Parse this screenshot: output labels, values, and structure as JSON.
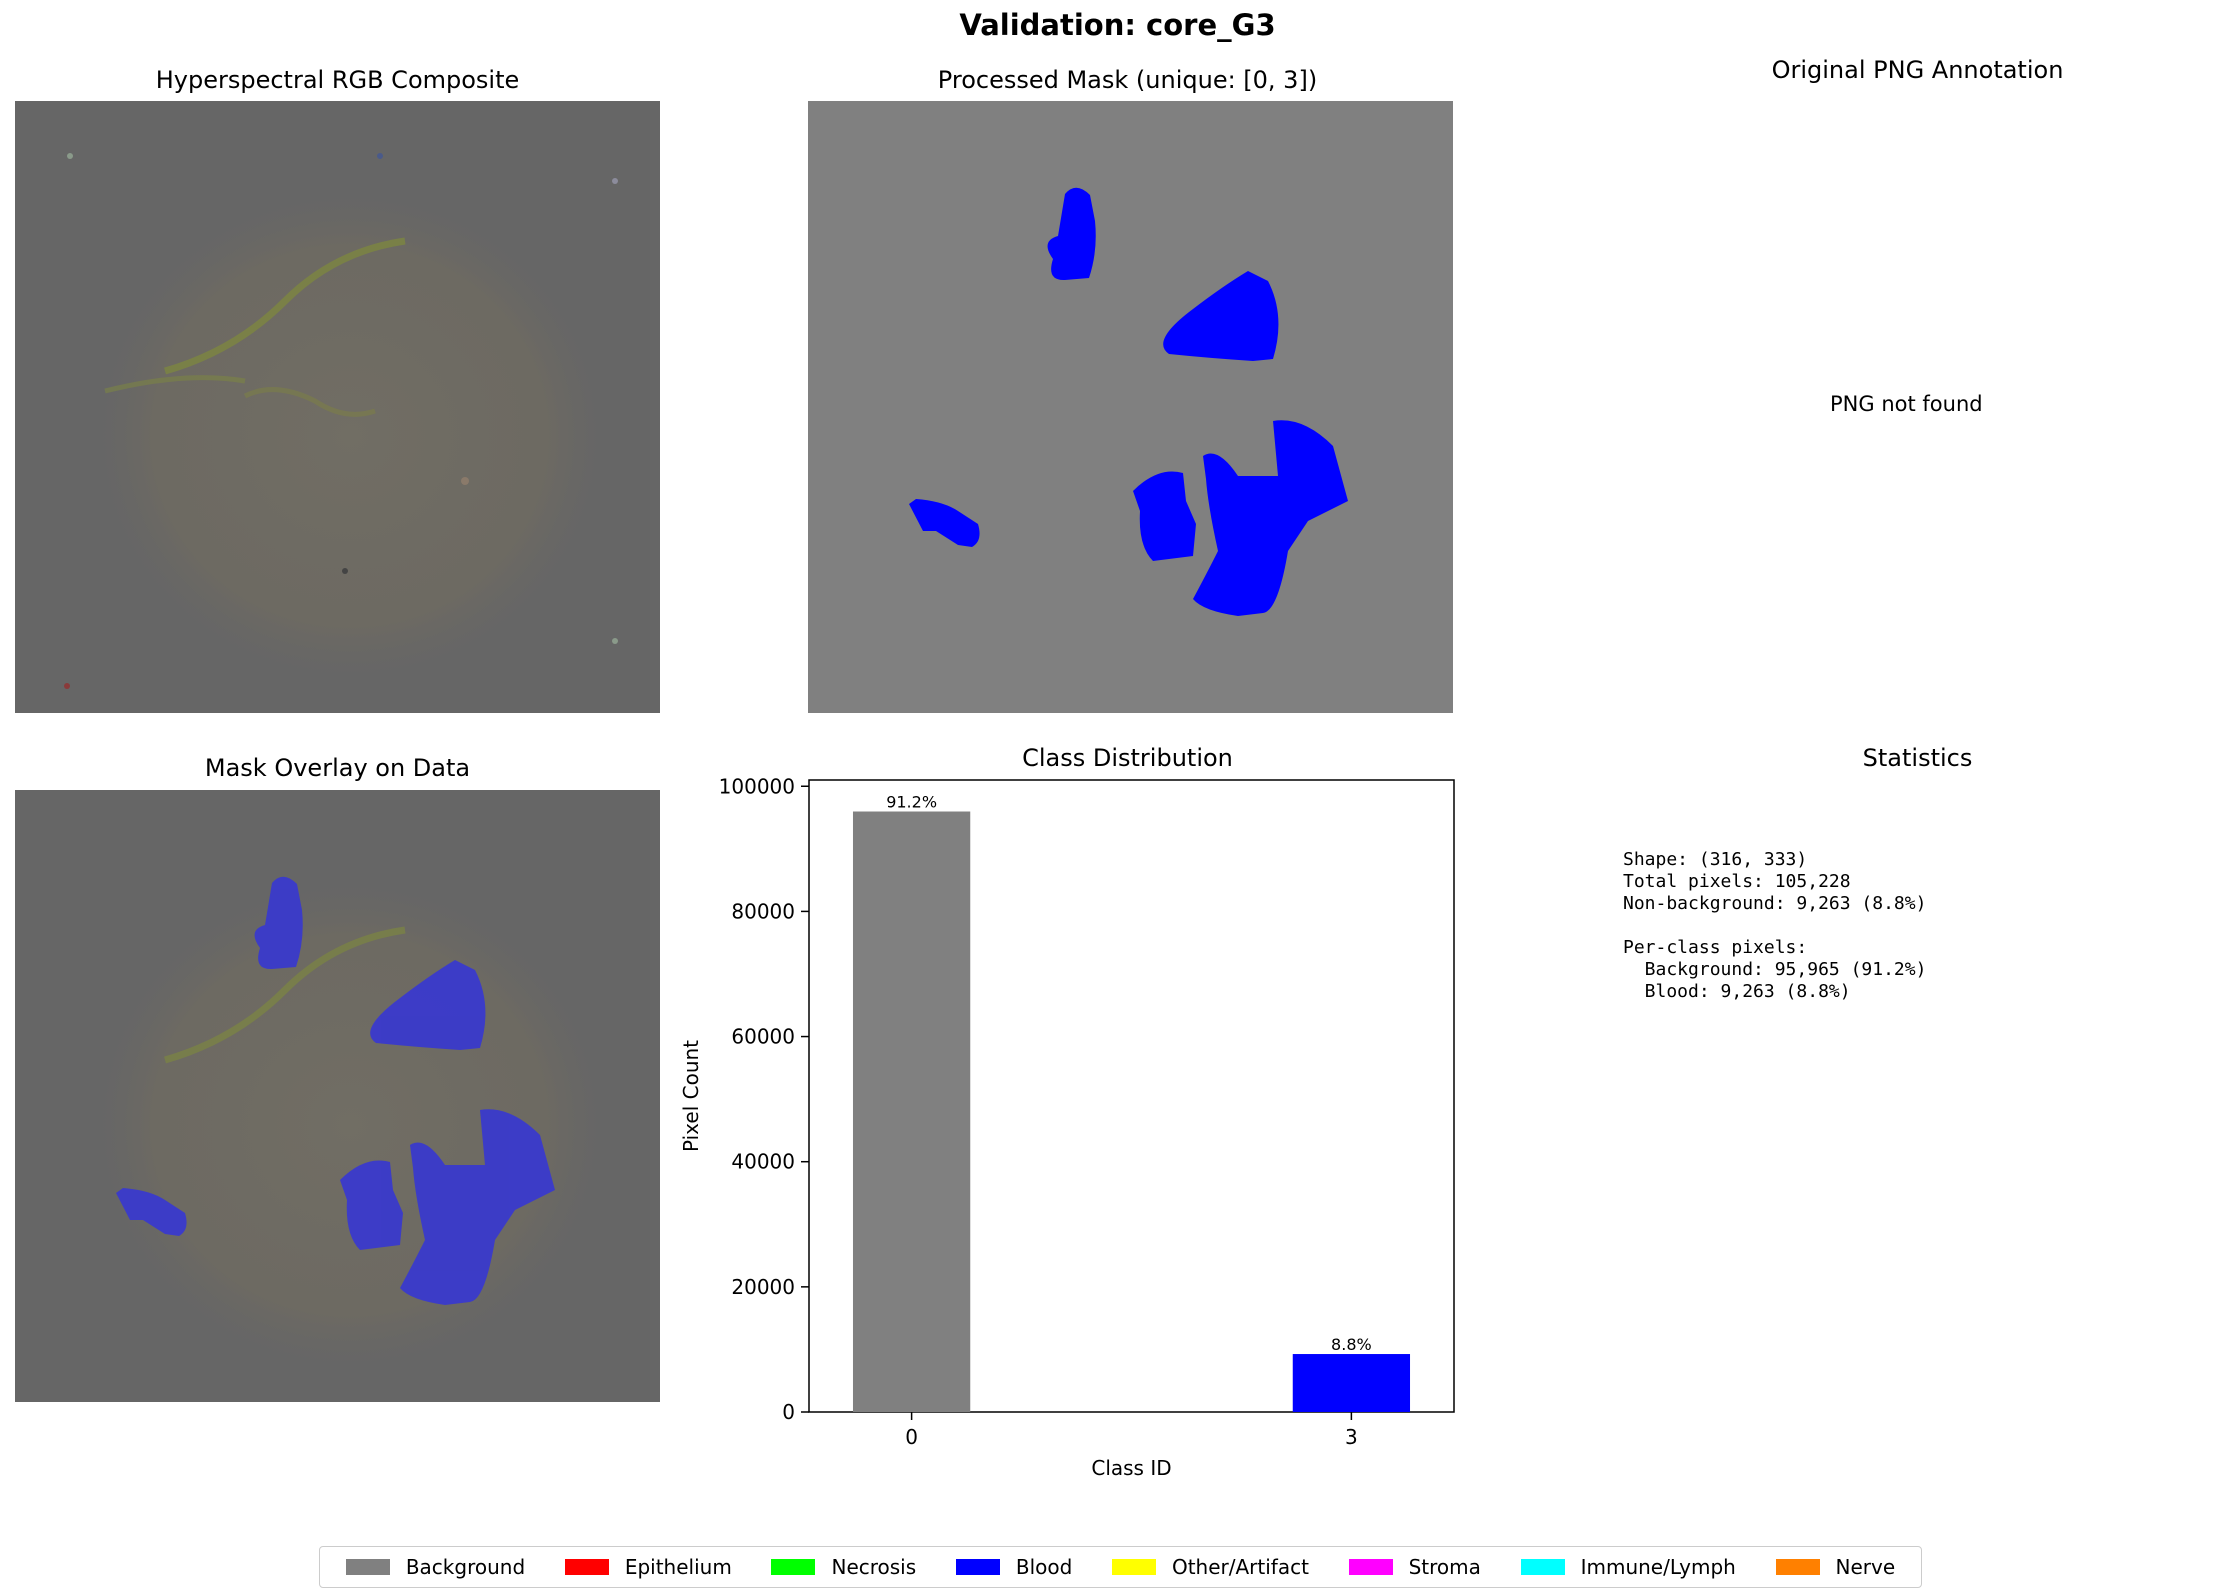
{
  "figure": {
    "title": "Validation: core_G3"
  },
  "panels": {
    "rgb": {
      "title": "Hyperspectral RGB Composite"
    },
    "mask": {
      "title": "Processed Mask (unique: [0, 3])"
    },
    "png": {
      "title": "Original PNG Annotation",
      "message": "PNG not found"
    },
    "overlay": {
      "title": "Mask Overlay on Data"
    },
    "stats": {
      "title": "Statistics",
      "lines": [
        "Shape: (316, 333)",
        "Total pixels: 105,228",
        "Non-background: 9,263 (8.8%)",
        "",
        "Per-class pixels:",
        "  Background: 95,965 (91.2%)",
        "  Blood: 9,263 (8.8%)"
      ]
    }
  },
  "chart_data": {
    "type": "bar",
    "title": "Class Distribution",
    "xlabel": "Class ID",
    "ylabel": "Pixel Count",
    "categories": [
      "0",
      "3"
    ],
    "values": [
      95965,
      9263
    ],
    "data_labels": [
      "91.2%",
      "8.8%"
    ],
    "colors": [
      "#808080",
      "#0000ff"
    ],
    "ylim": [
      0,
      101000
    ],
    "yticks": [
      0,
      20000,
      40000,
      60000,
      80000,
      100000
    ],
    "grid": false
  },
  "legend": {
    "items": [
      {
        "label": "Background",
        "color": "#808080"
      },
      {
        "label": "Epithelium",
        "color": "#ff0000"
      },
      {
        "label": "Necrosis",
        "color": "#00ff00"
      },
      {
        "label": "Blood",
        "color": "#0000ff"
      },
      {
        "label": "Other/Artifact",
        "color": "#ffff00"
      },
      {
        "label": "Stroma",
        "color": "#ff00ff"
      },
      {
        "label": "Immune/Lymph",
        "color": "#00ffff"
      },
      {
        "label": "Nerve",
        "color": "#ff8000"
      }
    ]
  }
}
